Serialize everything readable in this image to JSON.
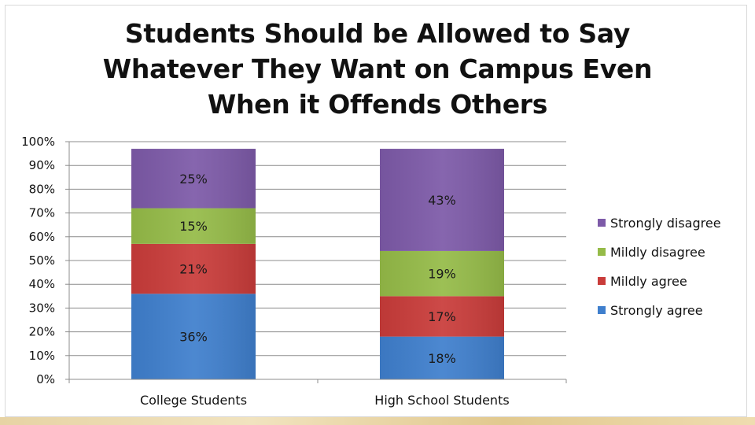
{
  "chart_data": {
    "type": "bar",
    "stacked": true,
    "title": [
      "Students Should be Allowed to Say",
      "Whatever They Want on Campus Even",
      "When it Offends Others"
    ],
    "categories": [
      "College Students",
      "High School Students"
    ],
    "ylim": [
      0,
      100
    ],
    "yticks": [
      "0%",
      "10%",
      "20%",
      "30%",
      "40%",
      "50%",
      "60%",
      "70%",
      "80%",
      "90%",
      "100%"
    ],
    "grid": true,
    "legend_position": "right",
    "series": [
      {
        "name": "Strongly agree",
        "values": [
          36,
          18
        ],
        "labels": [
          "36%",
          "18%"
        ],
        "color": "#3f7fcd"
      },
      {
        "name": "Mildly agree",
        "values": [
          21,
          17
        ],
        "labels": [
          "21%",
          "17%"
        ],
        "color": "#c93c3a"
      },
      {
        "name": "Mildly disagree",
        "values": [
          15,
          19
        ],
        "labels": [
          "15%",
          "19%"
        ],
        "color": "#95bb48"
      },
      {
        "name": "Strongly disagree",
        "values": [
          25,
          43
        ],
        "labels": [
          "25%",
          "43%"
        ],
        "color": "#7d5aa8"
      }
    ]
  }
}
